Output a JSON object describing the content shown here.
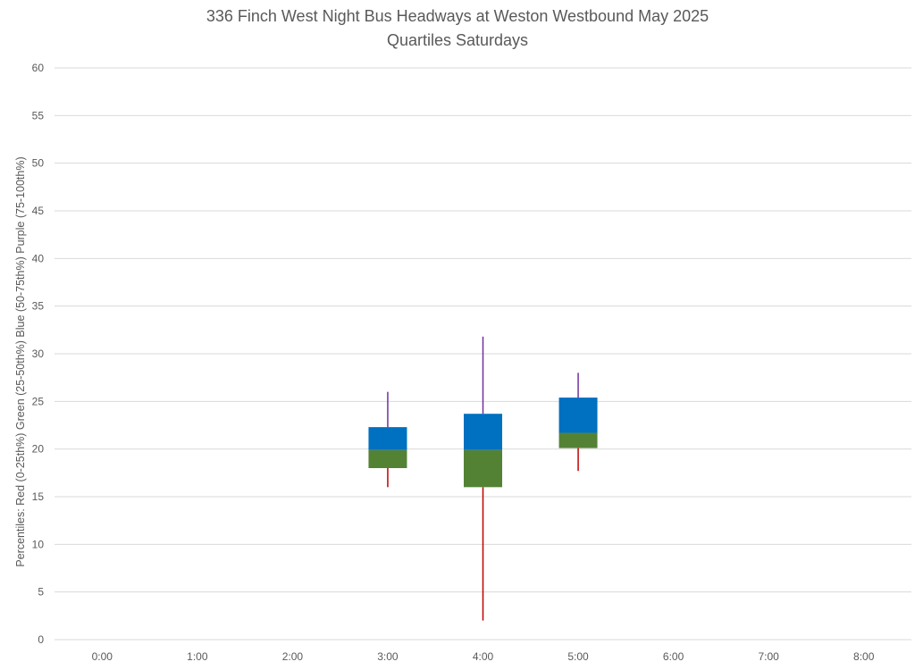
{
  "chart_data": {
    "type": "box",
    "title": "336 Finch West Night Bus Headways at Weston Westbound May 2025",
    "subtitle": "Quartiles Saturdays",
    "ylabel": "Percentiles:  Red (0-25th%)  Green (25-50th%)  Blue (50-75th%)  Purple (75-100th%)",
    "xlabel": "",
    "ylim": [
      0,
      60
    ],
    "yticks": [
      0,
      5,
      10,
      15,
      20,
      25,
      30,
      35,
      40,
      45,
      50,
      55,
      60
    ],
    "categories": [
      "0:00",
      "1:00",
      "2:00",
      "3:00",
      "4:00",
      "5:00",
      "6:00",
      "7:00",
      "8:00"
    ],
    "grid": true,
    "legend": "none",
    "colors": {
      "min_to_q1": "#c00000",
      "q1_to_median": "#548235",
      "median_to_q3": "#0070c0",
      "q3_to_max": "#7030a0",
      "gridline": "#d9d9d9"
    },
    "boxes": [
      {
        "category": "3:00",
        "min": 16.0,
        "q1": 18.0,
        "median": 19.9,
        "q3": 22.3,
        "max": 26.0
      },
      {
        "category": "4:00",
        "min": 2.0,
        "q1": 16.0,
        "median": 19.9,
        "q3": 23.7,
        "max": 31.8
      },
      {
        "category": "5:00",
        "min": 17.7,
        "q1": 20.1,
        "median": 21.7,
        "q3": 25.4,
        "max": 28.0
      }
    ]
  }
}
